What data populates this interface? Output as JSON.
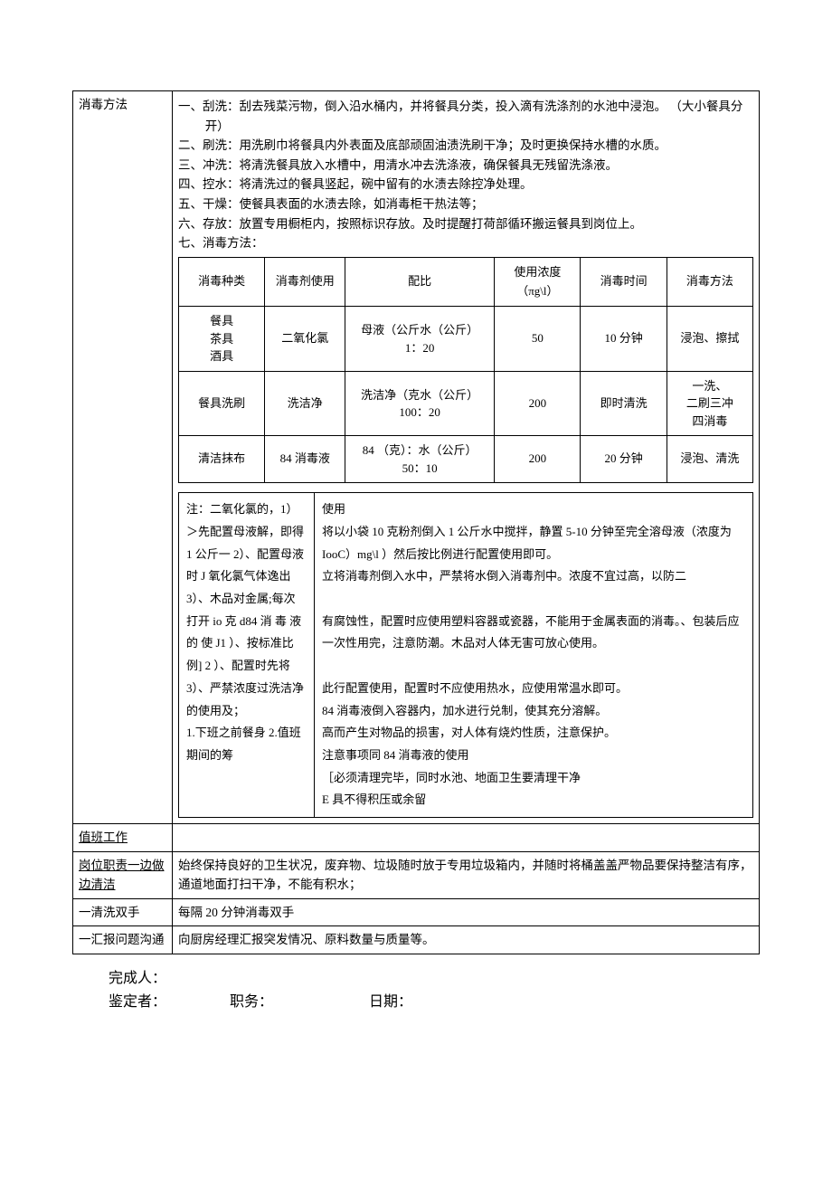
{
  "sections": {
    "disinfection": {
      "label": "消毒方法",
      "steps": [
        "一、刮洗：刮去残菜污物，倒入沿水桶内，并将餐具分类，投入滴有洗涤剂的水池中浸泡。 （大小餐具分开）",
        "二、刷洗：用洗刷巾将餐具内外表面及底部顽固油渍洗刷干净；及时更换保持水槽的水质。",
        "三、冲洗：将清洗餐具放入水槽中，用清水冲去洗涤液，确保餐具无残留洗涤液。",
        "四、控水：将清洗过的餐具竖起，碗中留有的水渍去除控净处理。",
        "五、干燥：使餐具表面的水渍去除，如消毒柜干热法等；",
        "六、存放：放置专用橱柜内，按照标识存放。及时提醒打荷部循环搬运餐具到岗位上。",
        "七、消毒方法："
      ],
      "table": {
        "headers": [
          "消毒种类",
          "消毒剂使用",
          "配比",
          "使用浓度 （πg\\l）",
          "消毒时间",
          "消毒方法"
        ],
        "rows": [
          {
            "type": "餐具\n茶具\n酒具",
            "agent": "二氧化氯",
            "ratio": "母液（公斤水（公斤）\n1：20",
            "conc": "50",
            "time": "10 分钟",
            "method": "浸泡、擦拭"
          },
          {
            "type": "餐具洗刷",
            "agent": "洗洁净",
            "ratio": "洗洁净（克水（公斤）\n100：20",
            "conc": "200",
            "time": "即时清洗",
            "method": "一洗、\n二刷三冲\n四消毒"
          },
          {
            "type": "清洁抹布",
            "agent": "84 消毒液",
            "ratio": "84 （克）：水（公斤）\n50：10",
            "conc": "200",
            "time": "20 分钟",
            "method": "浸泡、清洗"
          }
        ]
      },
      "notes": {
        "left": "注：二氧化氯的，1）＞先配置母液解，即得 1 公斤一 2）、配置母液时 J 氧化氯气体逸出 3）、木品对金属;每次打开 io 克 d84 消 毒 液 的 使 J1 ）、按标准比例] 2 ）、配置时先将 3）、严禁浓度过洗洁净的使用及；\n1.下班之前餐身 2.值班期间的筹",
        "right": "使用\n将以小袋 10 克粉剂倒入 1 公斤水中搅拌，静置 5-10 分钟至完全溶母液（浓度为 IooC）mg\\l ）然后按比例进行配置使用即可。\n立将消毒剂倒入水中，严禁将水倒入消毒剂中。浓度不宜过高，以防二\n\n有腐蚀性，配置时应使用塑料容器或瓷器，不能用于金属表面的消毒。、包装后应一次性用完，注意防潮。木品对人体无害可放心使用。\n\n此行配置使用，配置时不应使用热水，应使用常温水即可。\n84 消毒液倒入容器内，加水进行兑制，使其充分溶解。\n高而产生对物品的损害，对人体有烧灼性质，注意保护。\n注意事项同 84 消毒液的使用\n［必须清理完毕，同时水池、地面卫生要清理干净\nE 具不得积压或余留"
      }
    },
    "duty": {
      "label": "值班工作",
      "content": ""
    },
    "post": {
      "label": "岗位职责一边做边清洁",
      "content": "始终保持良好的卫生状况，废弃物、垃圾随时放于专用垃圾箱内，并随时将桶盖盖严物品要保持整洁有序，通道地面打扫干净，不能有积水；"
    },
    "wash": {
      "label": "一清洗双手",
      "content": "每隔 20 分钟消毒双手"
    },
    "report": {
      "label": "一汇报问题沟通",
      "content": "向厨房经理汇报突发情况、原料数量与质量等。"
    }
  },
  "footer": {
    "completed_by": "完成人：",
    "reviewer": "鉴定者：",
    "position": "职务：",
    "date": "日期："
  }
}
